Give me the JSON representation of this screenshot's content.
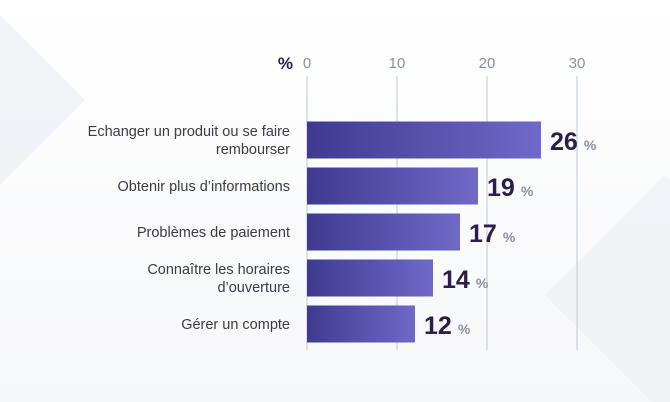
{
  "chart_data": {
    "type": "bar",
    "orientation": "horizontal",
    "unit_label": "%",
    "categories": [
      [
        "Echanger un produit ou se faire",
        "rembourser"
      ],
      [
        "Obtenir plus d’informations"
      ],
      [
        "Problèmes de paiement"
      ],
      [
        "Connaître les horaires",
        "d’ouverture"
      ],
      [
        "Gérer un compte"
      ]
    ],
    "values": [
      26,
      19,
      17,
      14,
      12
    ],
    "value_suffix": "%",
    "xticks": [
      0,
      10,
      20,
      30
    ],
    "xlim": [
      0,
      30
    ],
    "grid": true,
    "colors": {
      "bar_start": "#3f3a90",
      "bar_end": "#6f69c8",
      "grid": "#c9d1dc",
      "value_text": "#2b1e4a"
    }
  }
}
